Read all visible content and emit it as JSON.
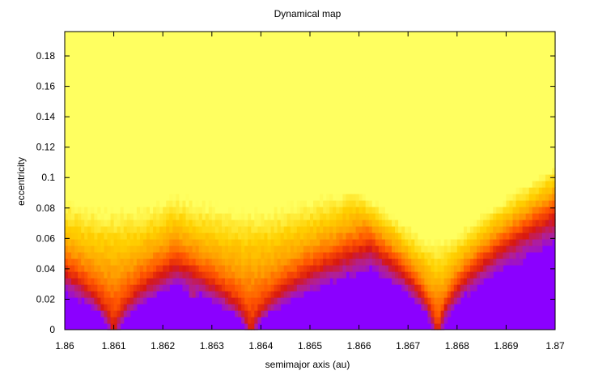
{
  "chart_data": {
    "type": "heatmap",
    "title": "Dynamical map",
    "xlabel": "semimajor axis (au)",
    "ylabel": "eccentricity",
    "xlim": [
      1.86,
      1.87
    ],
    "ylim": [
      0,
      0.196
    ],
    "grid": false,
    "legend": "none",
    "x_ticks": [
      "1.86",
      "1.861",
      "1.862",
      "1.863",
      "1.864",
      "1.865",
      "1.866",
      "1.867",
      "1.868",
      "1.869",
      "1.87"
    ],
    "y_ticks": [
      "0",
      "0.02",
      "0.04",
      "0.06",
      "0.08",
      "0.1",
      "0.12",
      "0.14",
      "0.16",
      "0.18"
    ],
    "x_tick_values": [
      1.86,
      1.861,
      1.862,
      1.863,
      1.864,
      1.865,
      1.866,
      1.867,
      1.868,
      1.869,
      1.87
    ],
    "y_tick_values": [
      0,
      0.02,
      0.04,
      0.06,
      0.08,
      0.1,
      0.12,
      0.14,
      0.16,
      0.18
    ],
    "colormap": [
      "#8b00ff",
      "#b02098",
      "#d81810",
      "#ff5500",
      "#ffa000",
      "#ffd000",
      "#ffff60"
    ],
    "background_color": "#8b00ff",
    "resonances": [
      {
        "a": 1.861,
        "e_onset": 0.0,
        "strength": 1.0,
        "slope": 2.6
      },
      {
        "a": 1.8638,
        "e_onset": 0.0,
        "strength": 1.0,
        "slope": 3.2
      },
      {
        "a": 1.8676,
        "e_onset": 0.0,
        "strength": 1.2,
        "slope": 1.6
      },
      {
        "a": 1.8626,
        "e_onset": 0.02,
        "strength": 0.55,
        "slope": 0.5
      },
      {
        "a": 1.8655,
        "e_onset": 0.04,
        "strength": 0.5,
        "slope": 0.6
      },
      {
        "a": 1.8597,
        "e_onset": 0.05,
        "strength": 0.45,
        "slope": 0.4
      },
      {
        "a": 1.8623,
        "e_onset": 0.12,
        "strength": 0.35,
        "slope": 0.4
      },
      {
        "a": 1.8659,
        "e_onset": 0.12,
        "strength": 0.35,
        "slope": 0.4
      },
      {
        "a": 1.8663,
        "e_onset": 0.14,
        "strength": 0.3,
        "slope": 0.3
      },
      {
        "a": 1.8693,
        "e_onset": 0.08,
        "strength": 0.4,
        "slope": 0.4
      },
      {
        "a": 1.8697,
        "e_onset": 0.14,
        "strength": 0.3,
        "slope": 0.3
      },
      {
        "a": 1.8606,
        "e_onset": 0.15,
        "strength": 0.3,
        "slope": 0.3
      },
      {
        "a": 1.8615,
        "e_onset": 0.15,
        "strength": 0.3,
        "slope": 0.3
      },
      {
        "a": 1.8645,
        "e_onset": 0.15,
        "strength": 0.3,
        "slope": 0.3
      },
      {
        "a": 1.8669,
        "e_onset": 0.14,
        "strength": 0.3,
        "slope": 0.3
      },
      {
        "a": 1.8685,
        "e_onset": 0.13,
        "strength": 0.3,
        "slope": 0.3
      }
    ],
    "top_band_onset_e": 0.15
  }
}
